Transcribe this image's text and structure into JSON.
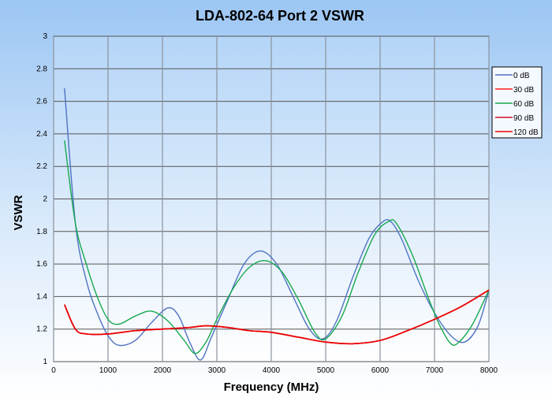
{
  "chart_data": {
    "type": "line",
    "title": "LDA-802-64 Port 2 VSWR",
    "xlabel": "Frequency (MHz)",
    "ylabel": "VSWR",
    "xlim": [
      0,
      8000
    ],
    "ylim": [
      1,
      3
    ],
    "xticks": [
      "0",
      "1000",
      "2000",
      "3000",
      "4000",
      "5000",
      "6000",
      "7000",
      "8000"
    ],
    "yticks": [
      "1",
      "1.2",
      "1.4",
      "1.6",
      "1.8",
      "2",
      "2.2",
      "2.4",
      "2.6",
      "2.8",
      "3"
    ],
    "grid": true,
    "legend_position": "right",
    "series": [
      {
        "name": "0 dB",
        "color": "#4f73c2",
        "width": 1.4,
        "points": [
          [
            200,
            2.68
          ],
          [
            400,
            1.85
          ],
          [
            600,
            1.5
          ],
          [
            800,
            1.3
          ],
          [
            1000,
            1.16
          ],
          [
            1200,
            1.1
          ],
          [
            1500,
            1.13
          ],
          [
            1800,
            1.24
          ],
          [
            2100,
            1.33
          ],
          [
            2300,
            1.28
          ],
          [
            2500,
            1.12
          ],
          [
            2700,
            1.01
          ],
          [
            2900,
            1.15
          ],
          [
            3200,
            1.38
          ],
          [
            3500,
            1.6
          ],
          [
            3800,
            1.68
          ],
          [
            4100,
            1.6
          ],
          [
            4400,
            1.4
          ],
          [
            4700,
            1.2
          ],
          [
            4950,
            1.14
          ],
          [
            5200,
            1.25
          ],
          [
            5500,
            1.52
          ],
          [
            5800,
            1.76
          ],
          [
            6050,
            1.86
          ],
          [
            6200,
            1.86
          ],
          [
            6400,
            1.75
          ],
          [
            6700,
            1.5
          ],
          [
            7000,
            1.3
          ],
          [
            7300,
            1.16
          ],
          [
            7550,
            1.12
          ],
          [
            7800,
            1.22
          ],
          [
            8000,
            1.44
          ]
        ]
      },
      {
        "name": "30 dB",
        "color": "#ff1a1a",
        "width": 1.6,
        "points": [
          [
            200,
            1.35
          ],
          [
            400,
            1.2
          ],
          [
            600,
            1.17
          ],
          [
            1000,
            1.17
          ],
          [
            1500,
            1.19
          ],
          [
            2000,
            1.2
          ],
          [
            2500,
            1.21
          ],
          [
            2800,
            1.22
          ],
          [
            3200,
            1.21
          ],
          [
            3600,
            1.19
          ],
          [
            4000,
            1.18
          ],
          [
            4500,
            1.15
          ],
          [
            5000,
            1.12
          ],
          [
            5500,
            1.11
          ],
          [
            6000,
            1.13
          ],
          [
            6500,
            1.19
          ],
          [
            7000,
            1.26
          ],
          [
            7500,
            1.34
          ],
          [
            8000,
            1.44
          ]
        ]
      },
      {
        "name": "60 dB",
        "color": "#17a84f",
        "width": 1.4,
        "points": [
          [
            200,
            2.36
          ],
          [
            400,
            1.85
          ],
          [
            600,
            1.6
          ],
          [
            800,
            1.4
          ],
          [
            1000,
            1.26
          ],
          [
            1200,
            1.23
          ],
          [
            1500,
            1.28
          ],
          [
            1800,
            1.31
          ],
          [
            2100,
            1.25
          ],
          [
            2400,
            1.13
          ],
          [
            2600,
            1.05
          ],
          [
            2800,
            1.12
          ],
          [
            3000,
            1.26
          ],
          [
            3300,
            1.45
          ],
          [
            3600,
            1.58
          ],
          [
            3900,
            1.62
          ],
          [
            4200,
            1.55
          ],
          [
            4500,
            1.38
          ],
          [
            4800,
            1.18
          ],
          [
            5000,
            1.14
          ],
          [
            5300,
            1.28
          ],
          [
            5600,
            1.55
          ],
          [
            5900,
            1.78
          ],
          [
            6150,
            1.86
          ],
          [
            6300,
            1.85
          ],
          [
            6600,
            1.65
          ],
          [
            6900,
            1.38
          ],
          [
            7100,
            1.22
          ],
          [
            7300,
            1.11
          ],
          [
            7450,
            1.12
          ],
          [
            7700,
            1.23
          ],
          [
            8000,
            1.44
          ]
        ]
      },
      {
        "name": "90 dB",
        "color": "#d0102a",
        "width": 1.6,
        "points": [
          [
            200,
            1.35
          ],
          [
            400,
            1.2
          ],
          [
            600,
            1.17
          ],
          [
            1000,
            1.17
          ],
          [
            1500,
            1.19
          ],
          [
            2000,
            1.2
          ],
          [
            2500,
            1.21
          ],
          [
            2800,
            1.22
          ],
          [
            3200,
            1.21
          ],
          [
            3600,
            1.19
          ],
          [
            4000,
            1.18
          ],
          [
            4500,
            1.15
          ],
          [
            5000,
            1.12
          ],
          [
            5500,
            1.11
          ],
          [
            6000,
            1.13
          ],
          [
            6500,
            1.19
          ],
          [
            7000,
            1.26
          ],
          [
            7500,
            1.34
          ],
          [
            8000,
            1.44
          ]
        ]
      },
      {
        "name": "120 dB",
        "color": "#ee0000",
        "width": 1.6,
        "points": [
          [
            200,
            1.35
          ],
          [
            400,
            1.2
          ],
          [
            600,
            1.17
          ],
          [
            1000,
            1.17
          ],
          [
            1500,
            1.19
          ],
          [
            2000,
            1.2
          ],
          [
            2500,
            1.21
          ],
          [
            2800,
            1.22
          ],
          [
            3200,
            1.21
          ],
          [
            3600,
            1.19
          ],
          [
            4000,
            1.18
          ],
          [
            4500,
            1.15
          ],
          [
            5000,
            1.12
          ],
          [
            5500,
            1.11
          ],
          [
            6000,
            1.13
          ],
          [
            6500,
            1.19
          ],
          [
            7000,
            1.26
          ],
          [
            7500,
            1.34
          ],
          [
            8000,
            1.44
          ]
        ]
      }
    ]
  }
}
